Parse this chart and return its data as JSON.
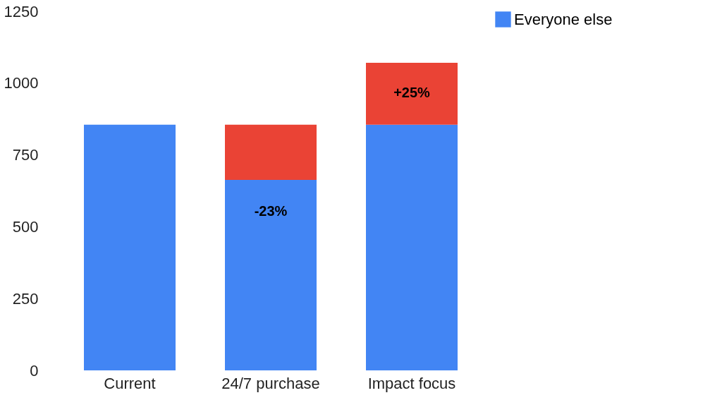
{
  "chart_data": {
    "type": "bar",
    "stacked": true,
    "categories": [
      "Current",
      "24/7 purchase",
      "Impact focus"
    ],
    "series": [
      {
        "name": "Everyone else",
        "color": "#4285f4",
        "values": [
          855,
          663,
          855
        ]
      },
      {
        "color": "#ea4335",
        "values": [
          null,
          192,
          216
        ]
      }
    ],
    "ylim": [
      0,
      1250
    ],
    "yticks": [
      0,
      250,
      500,
      750,
      1000,
      1250
    ],
    "grid": false,
    "legend": "top right",
    "annotations": [
      "-23%",
      "+25%"
    ]
  }
}
